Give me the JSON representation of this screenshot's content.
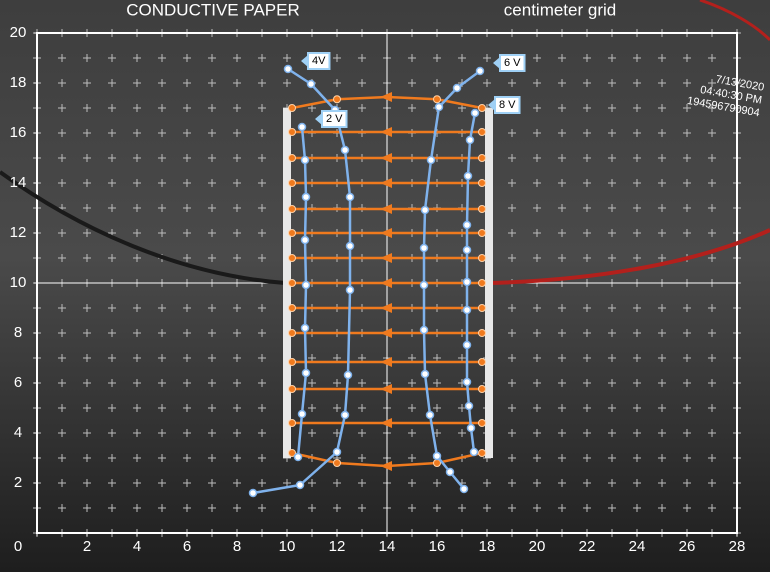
{
  "chart_data": {
    "type": "line",
    "title": "CONDUCTIVE PAPER",
    "subtitle": "centimeter grid",
    "annotations": [
      "7/13/2020",
      "04:40:30 PM",
      "194596790904"
    ],
    "xlim": [
      0,
      28
    ],
    "ylim": [
      0,
      20
    ],
    "xticks": [
      0,
      2,
      4,
      6,
      8,
      10,
      12,
      14,
      16,
      18,
      20,
      22,
      24,
      26,
      28
    ],
    "yticks": [
      2,
      4,
      6,
      8,
      10,
      12,
      14,
      16,
      18,
      20
    ],
    "series": [
      {
        "name": "4V",
        "color": "#7fb2ec",
        "x": [
          10.04,
          10.96,
          11.92,
          12.32,
          12.52,
          12.52,
          12.52,
          12.44,
          12.32,
          12,
          10.52,
          8.64
        ],
        "values": [
          18.56,
          17.96,
          16.92,
          15.32,
          13.44,
          11.48,
          9.72,
          6.32,
          4.72,
          3.24,
          1.92,
          1.6
        ]
      },
      {
        "name": "2 V",
        "color": "#7fb2ec",
        "x": [
          10.6,
          10.72,
          10.76,
          10.72,
          10.76,
          10.72,
          10.76,
          10.6,
          10.44
        ],
        "values": [
          16.24,
          14.92,
          13.44,
          11.72,
          9.92,
          8.2,
          6.4,
          4.76,
          3.04
        ]
      },
      {
        "name": "6 V",
        "color": "#7fb2ec",
        "x": [
          17.72,
          16.8,
          16.08,
          15.76,
          15.52,
          15.48,
          15.48,
          15.48,
          15.52,
          15.72,
          16,
          16.52,
          17.08
        ],
        "values": [
          18.48,
          17.8,
          17.04,
          14.92,
          12.92,
          11.4,
          9.92,
          8.12,
          6.36,
          4.72,
          3.08,
          2.44,
          1.76
        ]
      },
      {
        "name": "8 V",
        "color": "#7fb2ec",
        "x": [
          17.52,
          17.32,
          17.24,
          17.2,
          17.2,
          17.2,
          17.2,
          17.2,
          17.2,
          17.28,
          17.36,
          17.48
        ],
        "values": [
          16.8,
          15.72,
          14.28,
          12.32,
          11.32,
          10.04,
          8.92,
          7.52,
          6.04,
          5.08,
          4.2,
          3.24
        ]
      }
    ],
    "field_lines": [
      {
        "color": "#f07a1e",
        "x": [
          10.2,
          12,
          14,
          16,
          17.8
        ],
        "values": [
          17.0,
          17.35,
          17.44,
          17.35,
          17.0
        ]
      },
      {
        "color": "#f07a1e",
        "x": [
          10.2,
          14,
          17.8
        ],
        "values": [
          16.04,
          16.04,
          16.04
        ]
      },
      {
        "color": "#f07a1e",
        "x": [
          10.2,
          14,
          17.8
        ],
        "values": [
          15.0,
          15.0,
          15.0
        ]
      },
      {
        "color": "#f07a1e",
        "x": [
          10.2,
          14,
          17.8
        ],
        "values": [
          14.0,
          14.0,
          14.0
        ]
      },
      {
        "color": "#f07a1e",
        "x": [
          10.2,
          14,
          17.8
        ],
        "values": [
          12.96,
          12.96,
          12.96
        ]
      },
      {
        "color": "#f07a1e",
        "x": [
          10.2,
          14,
          17.8
        ],
        "values": [
          12.0,
          12.0,
          12.0
        ]
      },
      {
        "color": "#f07a1e",
        "x": [
          10.2,
          14,
          17.8
        ],
        "values": [
          11.0,
          11.0,
          11.0
        ]
      },
      {
        "color": "#f07a1e",
        "x": [
          10.2,
          14,
          17.8
        ],
        "values": [
          10.0,
          10.0,
          10.0
        ]
      },
      {
        "color": "#f07a1e",
        "x": [
          10.2,
          14,
          17.8
        ],
        "values": [
          9.0,
          9.0,
          9.0
        ]
      },
      {
        "color": "#f07a1e",
        "x": [
          10.2,
          14,
          17.8
        ],
        "values": [
          8.0,
          8.0,
          8.0
        ]
      },
      {
        "color": "#f07a1e",
        "x": [
          10.2,
          14,
          17.8
        ],
        "values": [
          6.84,
          6.84,
          6.84
        ]
      },
      {
        "color": "#f07a1e",
        "x": [
          10.2,
          14,
          17.8
        ],
        "values": [
          5.76,
          5.76,
          5.76
        ]
      },
      {
        "color": "#f07a1e",
        "x": [
          10.2,
          14,
          17.8
        ],
        "values": [
          4.4,
          4.4,
          4.4
        ]
      },
      {
        "color": "#f07a1e",
        "x": [
          10.2,
          12,
          14,
          16,
          17.8
        ],
        "values": [
          3.2,
          2.8,
          2.68,
          2.8,
          3.2
        ]
      }
    ]
  }
}
